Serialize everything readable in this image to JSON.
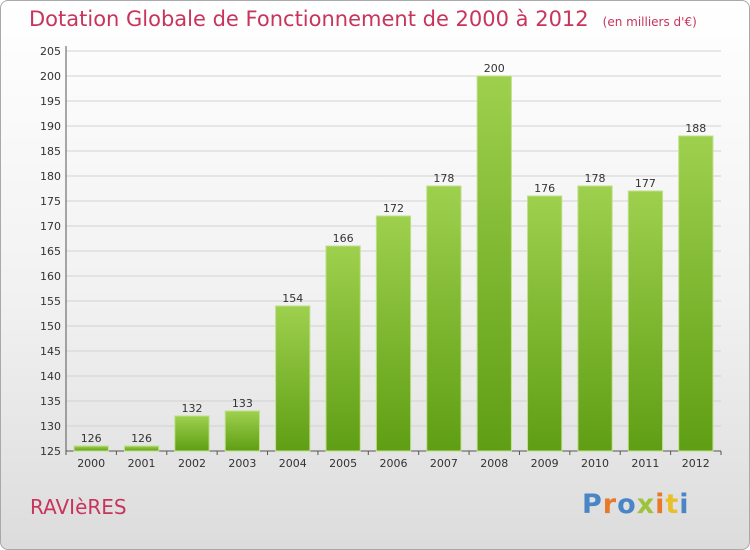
{
  "title": {
    "main": "Dotation Globale de Fonctionnement de 2000 à 2012",
    "unit": "(en milliers d'€)"
  },
  "town": "RAVIèRES",
  "brand": {
    "letters": [
      "P",
      "r",
      "o",
      "x",
      "i",
      "t",
      "i"
    ]
  },
  "colors": {
    "title": "#c8345c",
    "bar_light": "#9ed04e",
    "bar_dark": "#5f9e14",
    "grid": "#d2d2d2",
    "axis": "#555555"
  },
  "chart_data": {
    "type": "bar",
    "categories": [
      "2000",
      "2001",
      "2002",
      "2003",
      "2004",
      "2005",
      "2006",
      "2007",
      "2008",
      "2009",
      "2010",
      "2011",
      "2012"
    ],
    "values": [
      126,
      126,
      132,
      133,
      154,
      166,
      172,
      178,
      200,
      176,
      178,
      177,
      188
    ],
    "ylim": [
      125,
      205
    ],
    "yticks": [
      125,
      130,
      135,
      140,
      145,
      150,
      155,
      160,
      165,
      170,
      175,
      180,
      185,
      190,
      195,
      200,
      205
    ],
    "grid": true,
    "data_labels": true
  }
}
